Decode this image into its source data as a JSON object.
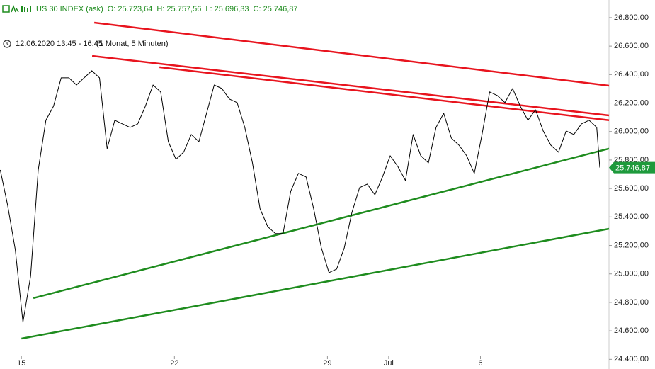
{
  "chart_data": {
    "type": "line",
    "symbol": "US 30 INDEX (ask)",
    "ohlc": [
      "O: 25.723,64",
      "H: 25.757,56",
      "L: 25.696,33",
      "C: 25.746,87"
    ],
    "period": "12.06.2020 13:45 - 16:45",
    "interval": "(1 Monat, 5 Minuten)",
    "color": "#000000",
    "x": [
      -0.69,
      -0.45,
      -0.2,
      0.05,
      0.3,
      0.55,
      0.8,
      1.05,
      1.3,
      1.55,
      1.8,
      2.05,
      2.3,
      2.55,
      2.8,
      3.05,
      3.3,
      3.55,
      3.8,
      4.05,
      4.3,
      4.55,
      4.8,
      5.05,
      5.3,
      5.55,
      5.8,
      6.05,
      6.3,
      6.55,
      6.8,
      7.05,
      7.3,
      7.55,
      7.8,
      8.05,
      8.3,
      8.55,
      8.8,
      9.05,
      9.3,
      9.55,
      9.8,
      10.05,
      10.3,
      10.55,
      10.8,
      11.05,
      11.3,
      11.55,
      11.8,
      12.05,
      12.3,
      12.55,
      12.8,
      13.05,
      13.3,
      13.55,
      13.8,
      14.05,
      14.3,
      14.55,
      14.8,
      15.05,
      15.3,
      15.55,
      15.8,
      16.05,
      16.3,
      16.55,
      16.8,
      17.05,
      17.3,
      17.55,
      17.8,
      18.05,
      18.3,
      18.55,
      18.8,
      18.9
    ],
    "values": [
      25730,
      25482,
      25170,
      24660,
      24984,
      25730,
      26079,
      26178,
      26377,
      26377,
      26327,
      26377,
      26427,
      26377,
      25880,
      26079,
      26054,
      26029,
      26054,
      26178,
      26327,
      26278,
      25929,
      25805,
      25855,
      25979,
      25929,
      26128,
      26327,
      26302,
      26228,
      26203,
      26029,
      25780,
      25457,
      25332,
      25283,
      25283,
      25581,
      25706,
      25681,
      25457,
      25183,
      25009,
      25034,
      25183,
      25432,
      25606,
      25631,
      25556,
      25681,
      25830,
      25755,
      25656,
      25979,
      25830,
      25780,
      26029,
      26128,
      25954,
      25904,
      25830,
      25706,
      25979,
      26278,
      26253,
      26203,
      26302,
      26178,
      26079,
      26153,
      26004,
      25904,
      25855,
      26004,
      25979,
      26054,
      26079,
      26029,
      25747
    ],
    "trendlines": [
      {
        "color": "#e8141e",
        "x": [
          2.38,
          19.2
        ],
        "values": [
          26765,
          26322
        ]
      },
      {
        "color": "#e8141e",
        "x": [
          2.31,
          19.2
        ],
        "values": [
          26531,
          26113
        ]
      },
      {
        "color": "#e8141e",
        "x": [
          4.51,
          19.2
        ],
        "values": [
          26452,
          26079
        ]
      },
      {
        "color": "#1e8c1e",
        "x": [
          0.39,
          19.2
        ],
        "values": [
          24830,
          25880
        ]
      },
      {
        "color": "#1e8c1e",
        "x": [
          0,
          19.2
        ],
        "values": [
          24546,
          25317
        ]
      }
    ],
    "current_price": {
      "value": 25746.87,
      "label": "25.746,87",
      "color": "#1e9a3c"
    },
    "xlim": [
      -0.7,
      19.2
    ],
    "ylim": [
      24332,
      26924
    ],
    "xticks": [
      {
        "value": 0,
        "label": "15"
      },
      {
        "value": 5,
        "label": "22"
      },
      {
        "value": 10,
        "label": "29"
      },
      {
        "value": 12,
        "label": "Jul"
      },
      {
        "value": 15,
        "label": "6"
      }
    ],
    "yticks": [
      {
        "value": 26800,
        "label": "26.800,00"
      },
      {
        "value": 26600,
        "label": "26.600,00"
      },
      {
        "value": 26400,
        "label": "26.400,00"
      },
      {
        "value": 26200,
        "label": "26.200,00"
      },
      {
        "value": 26000,
        "label": "26.000,00"
      },
      {
        "value": 25800,
        "label": "25.800,00"
      },
      {
        "value": 25600,
        "label": "25.600,00"
      },
      {
        "value": 25400,
        "label": "25.400,00"
      },
      {
        "value": 25200,
        "label": "25.200,00"
      },
      {
        "value": 25000,
        "label": "25.000,00"
      },
      {
        "value": 24800,
        "label": "24.800,00"
      },
      {
        "value": 24600,
        "label": "24.600,00"
      },
      {
        "value": 24400,
        "label": "24.400,00"
      }
    ]
  }
}
